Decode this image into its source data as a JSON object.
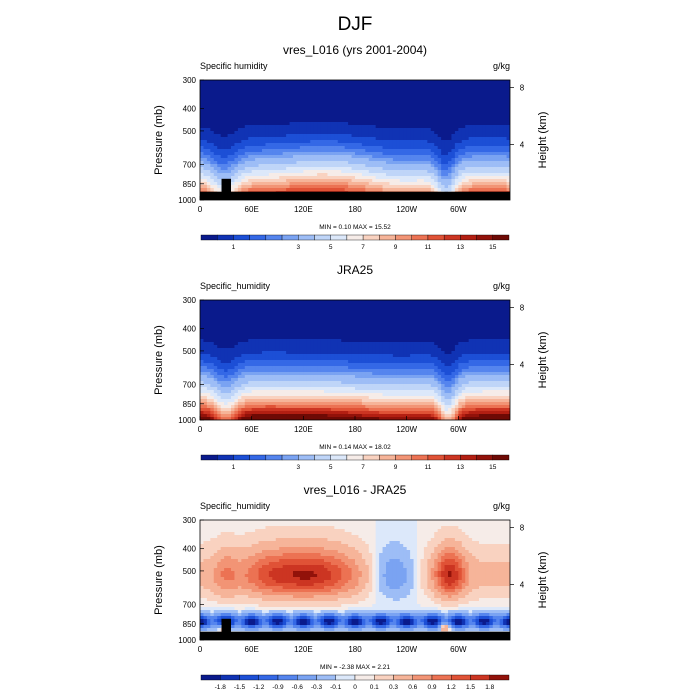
{
  "figure_title": "DJF",
  "chart_data": [
    {
      "type": "heatmap",
      "id": "model",
      "title": "vres_L016 (yrs 2001-2004)",
      "left_string": "Specific humidity",
      "right_string": "g/kg",
      "ylabel": "Pressure (mb)",
      "y2label": "Height (km)",
      "xticks": [
        "0",
        "60E",
        "120E",
        "180",
        "120W",
        "60W"
      ],
      "x_lon_ticks": [
        0,
        60,
        120,
        180,
        240,
        300
      ],
      "xlim": [
        0,
        360
      ],
      "yticks": [
        "300",
        "400",
        "500",
        "700",
        "850",
        "1000"
      ],
      "p_levels": [
        300,
        400,
        500,
        700,
        850,
        1000
      ],
      "ylim_mb": [
        1000,
        300
      ],
      "height_ticks": [
        "8",
        "4"
      ],
      "height_km": [
        8,
        4
      ],
      "stats": "MIN =   0.10  MAX =  15.52",
      "min": 0.1,
      "max": 15.52,
      "colorbar_labels": [
        "1",
        "3",
        "5",
        "7",
        "9",
        "11",
        "13",
        "15"
      ],
      "colorbar_levels": [
        0.5,
        1,
        1.5,
        2,
        2.5,
        3,
        4,
        5,
        6,
        7,
        8,
        9,
        10,
        11,
        12,
        13,
        14,
        15
      ],
      "topography": true,
      "colors": [
        "#0a1a8c",
        "#1033b4",
        "#1c4fd6",
        "#3468e6",
        "#5585ee",
        "#7aa3f2",
        "#9dbdf6",
        "#bfd5f8",
        "#dce8fa",
        "#f6ece8",
        "#f9d2c0",
        "#f6b499",
        "#f29475",
        "#ec7253",
        "#e05236",
        "#cc3522",
        "#b31f12",
        "#92120a",
        "#6e0a05"
      ]
    },
    {
      "type": "heatmap",
      "id": "obs",
      "title": "JRA25",
      "left_string": "Specific_humidity",
      "right_string": "g/kg",
      "ylabel": "Pressure (mb)",
      "y2label": "Height (km)",
      "xticks": [
        "0",
        "60E",
        "120E",
        "180",
        "120W",
        "60W"
      ],
      "x_lon_ticks": [
        0,
        60,
        120,
        180,
        240,
        300
      ],
      "xlim": [
        0,
        360
      ],
      "yticks": [
        "300",
        "400",
        "500",
        "700",
        "850",
        "1000"
      ],
      "p_levels": [
        300,
        400,
        500,
        700,
        850,
        1000
      ],
      "ylim_mb": [
        1000,
        300
      ],
      "height_ticks": [
        "8",
        "4"
      ],
      "height_km": [
        8,
        4
      ],
      "stats": "MIN =   0.14  MAX =  18.02",
      "min": 0.14,
      "max": 18.02,
      "colorbar_labels": [
        "1",
        "3",
        "5",
        "7",
        "9",
        "11",
        "13",
        "15"
      ],
      "colorbar_levels": [
        0.5,
        1,
        1.5,
        2,
        2.5,
        3,
        4,
        5,
        6,
        7,
        8,
        9,
        10,
        11,
        12,
        13,
        14,
        15
      ],
      "topography": false,
      "colors": [
        "#0a1a8c",
        "#1033b4",
        "#1c4fd6",
        "#3468e6",
        "#5585ee",
        "#7aa3f2",
        "#9dbdf6",
        "#bfd5f8",
        "#dce8fa",
        "#f6ece8",
        "#f9d2c0",
        "#f6b499",
        "#f29475",
        "#ec7253",
        "#e05236",
        "#cc3522",
        "#b31f12",
        "#92120a",
        "#6e0a05"
      ]
    },
    {
      "type": "heatmap",
      "id": "diff",
      "title": "vres_L016 - JRA25",
      "left_string": "Specific_humidity",
      "right_string": "g/kg",
      "ylabel": "Pressure (mb)",
      "y2label": "Height (km)",
      "xticks": [
        "0",
        "60E",
        "120E",
        "180",
        "120W",
        "60W"
      ],
      "x_lon_ticks": [
        0,
        60,
        120,
        180,
        240,
        300
      ],
      "xlim": [
        0,
        360
      ],
      "yticks": [
        "300",
        "400",
        "500",
        "700",
        "850",
        "1000"
      ],
      "p_levels": [
        300,
        400,
        500,
        700,
        850,
        1000
      ],
      "ylim_mb": [
        1000,
        300
      ],
      "height_ticks": [
        "8",
        "4"
      ],
      "height_km": [
        8,
        4
      ],
      "stats": "MIN =  -2.38  MAX =   2.21",
      "min": -2.38,
      "max": 2.21,
      "colorbar_labels": [
        "-1.8",
        "-1.5",
        "-1.2",
        "-0.9",
        "-0.6",
        "-0.3",
        "-0.1",
        "0",
        "0.1",
        "0.3",
        "0.6",
        "0.9",
        "1.2",
        "1.5",
        "1.8"
      ],
      "colorbar_levels": [
        -1.8,
        -1.5,
        -1.2,
        -0.9,
        -0.6,
        -0.3,
        -0.1,
        0,
        0.1,
        0.3,
        0.6,
        0.9,
        1.2,
        1.5,
        1.8
      ],
      "topography": true,
      "colors": [
        "#0a1a8c",
        "#1033b4",
        "#1c4fd6",
        "#3468e6",
        "#5585ee",
        "#7aa3f2",
        "#9dbdf6",
        "#dce8fa",
        "#f6ece8",
        "#f9d2c0",
        "#f6b499",
        "#f29475",
        "#ec7253",
        "#e05236",
        "#cc3522",
        "#92120a"
      ]
    }
  ]
}
